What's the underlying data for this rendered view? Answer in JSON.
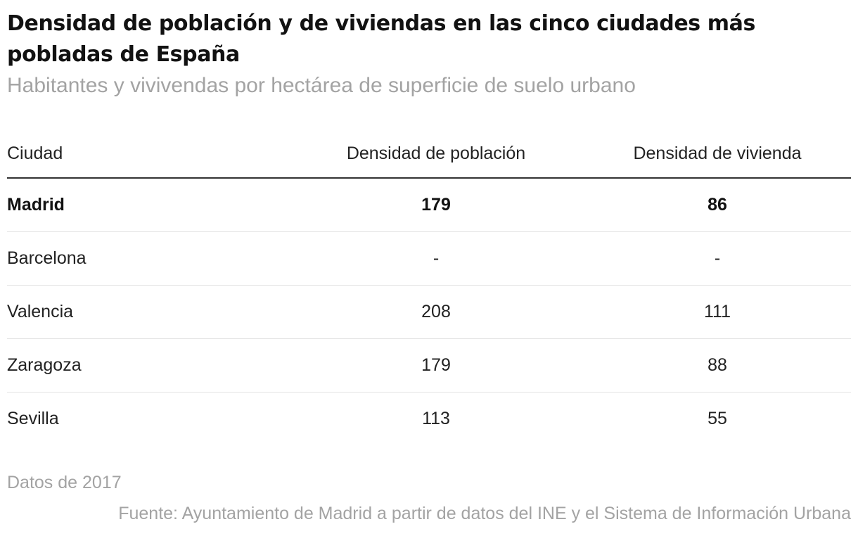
{
  "header": {
    "title": "Densidad de población y de viviendas en las cinco ciudades más pobladas de España",
    "subtitle": "Habitantes y vivivendas por hectárea de superficie de suelo urbano"
  },
  "footer": {
    "note": "Datos de 2017",
    "source": "Fuente: Ayuntamiento de Madrid a partir de datos del INE y el Sistema de Información Urbana"
  },
  "chart_data": {
    "type": "table",
    "title": "Densidad de población y de viviendas en las cinco ciudades más pobladas de España",
    "subtitle": "Habitantes y vivivendas por hectárea de superficie de suelo urbano",
    "columns": [
      "Ciudad",
      "Densidad de población",
      "Densidad de vivienda"
    ],
    "rows": [
      {
        "ciudad": "Madrid",
        "poblacion": "179",
        "vivienda": "86",
        "highlight": true
      },
      {
        "ciudad": "Barcelona",
        "poblacion": "-",
        "vivienda": "-",
        "highlight": false
      },
      {
        "ciudad": "Valencia",
        "poblacion": "208",
        "vivienda": "111",
        "highlight": false
      },
      {
        "ciudad": "Zaragoza",
        "poblacion": "179",
        "vivienda": "88",
        "highlight": false
      },
      {
        "ciudad": "Sevilla",
        "poblacion": "113",
        "vivienda": "55",
        "highlight": false
      }
    ]
  }
}
